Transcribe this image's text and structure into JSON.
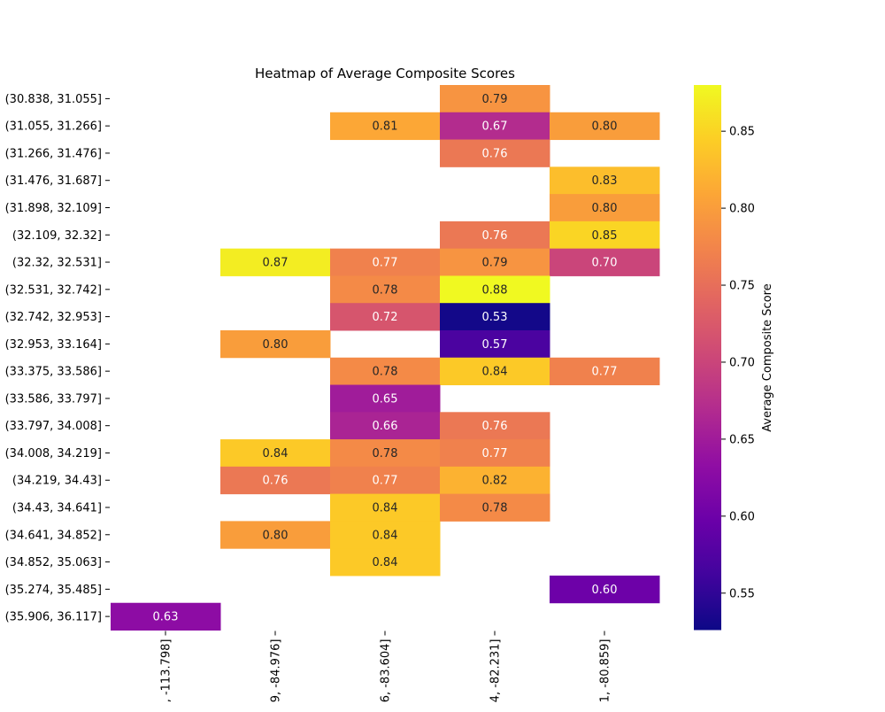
{
  "chart_data": {
    "type": "heatmap",
    "title": "Heatmap of Average Composite Scores",
    "rows": [
      "(30.838, 31.055]",
      "(31.055, 31.266]",
      "(31.266, 31.476]",
      "(31.476, 31.687]",
      "(31.898, 32.109]",
      "(32.109, 32.32]",
      "(32.32, 32.531]",
      "(32.531, 32.742]",
      "(32.742, 32.953]",
      "(32.953, 33.164]",
      "(33.375, 33.586]",
      "(33.586, 33.797]",
      "(33.797, 34.008]",
      "(34.008, 34.219]",
      "(34.219, 34.43]",
      "(34.43, 34.641]",
      "(34.641, 34.852]",
      "(34.852, 35.063]",
      "(35.274, 35.485]",
      "(35.906, 36.117]"
    ],
    "columns": [
      ", -113.798]",
      "9, -84.976]",
      "6, -83.604]",
      "4, -82.231]",
      "1, -80.859]"
    ],
    "values": [
      [
        null,
        null,
        null,
        0.79,
        null
      ],
      [
        null,
        null,
        0.81,
        0.67,
        0.8
      ],
      [
        null,
        null,
        null,
        0.76,
        null
      ],
      [
        null,
        null,
        null,
        null,
        0.83
      ],
      [
        null,
        null,
        null,
        null,
        0.8
      ],
      [
        null,
        null,
        null,
        0.76,
        0.85
      ],
      [
        null,
        0.87,
        0.77,
        0.79,
        0.7
      ],
      [
        null,
        null,
        0.78,
        0.88,
        null
      ],
      [
        null,
        null,
        0.72,
        0.53,
        null
      ],
      [
        null,
        0.8,
        null,
        0.57,
        null
      ],
      [
        null,
        null,
        0.78,
        0.84,
        0.77
      ],
      [
        null,
        null,
        0.65,
        null,
        null
      ],
      [
        null,
        null,
        0.66,
        0.76,
        null
      ],
      [
        null,
        0.84,
        0.78,
        0.77,
        null
      ],
      [
        null,
        0.76,
        0.77,
        0.82,
        null
      ],
      [
        null,
        null,
        0.84,
        0.78,
        null
      ],
      [
        null,
        0.8,
        0.84,
        null,
        null
      ],
      [
        null,
        null,
        0.84,
        null,
        null
      ],
      [
        null,
        null,
        null,
        null,
        0.6
      ],
      [
        0.63,
        null,
        null,
        null,
        null
      ]
    ],
    "value_format": "0.00",
    "colormap": "plasma",
    "colorbar": {
      "label": "Average Composite Score",
      "range": [
        0.526,
        0.88
      ],
      "ticks": [
        "0.55",
        "0.60",
        "0.65",
        "0.70",
        "0.75",
        "0.80",
        "0.85"
      ]
    },
    "xlabel": "",
    "ylabel": "",
    "grid": false
  }
}
